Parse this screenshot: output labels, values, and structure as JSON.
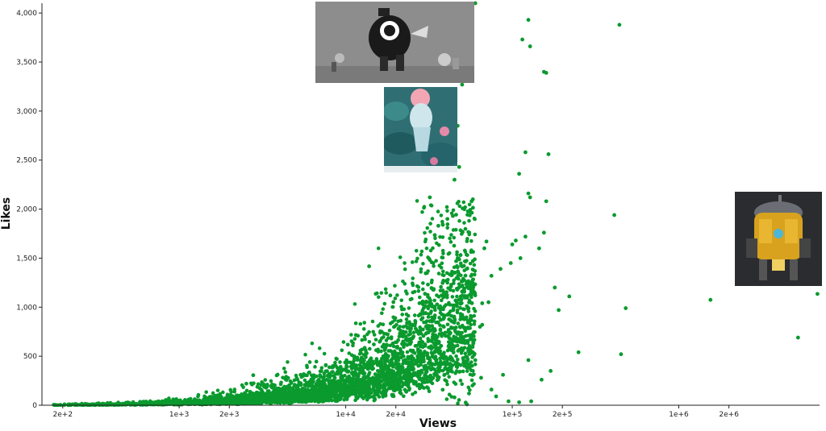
{
  "chart_data": {
    "type": "scatter",
    "title": "",
    "xlabel": "Views",
    "ylabel": "Likes",
    "x_scale": "log",
    "xlim": [
      150,
      7000000
    ],
    "ylim": [
      0,
      4100
    ],
    "x_ticks": [
      {
        "value": 200,
        "label": "2e+2"
      },
      {
        "value": 1000,
        "label": "1e+3"
      },
      {
        "value": 2000,
        "label": "2e+3"
      },
      {
        "value": 10000,
        "label": "1e+4"
      },
      {
        "value": 20000,
        "label": "2e+4"
      },
      {
        "value": 100000,
        "label": "1e+5"
      },
      {
        "value": 200000,
        "label": "2e+5"
      },
      {
        "value": 1000000,
        "label": "1e+6"
      },
      {
        "value": 2000000,
        "label": "2e+6"
      }
    ],
    "y_ticks": [
      {
        "value": 0,
        "label": "0"
      },
      {
        "value": 500,
        "label": "500"
      },
      {
        "value": 1000,
        "label": "1,000"
      },
      {
        "value": 1500,
        "label": "1,500"
      },
      {
        "value": 2000,
        "label": "2,000"
      },
      {
        "value": 2500,
        "label": "2,500"
      },
      {
        "value": 3000,
        "label": "3,000"
      },
      {
        "value": 3500,
        "label": "3,500"
      },
      {
        "value": 4000,
        "label": "4,000"
      }
    ],
    "point_color": "#0a9a2e",
    "grid": false,
    "legend": "none",
    "series": [
      {
        "values": [
          [
            60000,
            4100
          ],
          [
            125000,
            3930
          ],
          [
            115000,
            3730
          ],
          [
            128000,
            3660
          ],
          [
            440000,
            3880
          ],
          [
            155000,
            3400
          ],
          [
            160000,
            3390
          ],
          [
            50000,
            3270
          ],
          [
            47000,
            2850
          ],
          [
            45000,
            2820
          ],
          [
            120000,
            2580
          ],
          [
            165000,
            2560
          ],
          [
            48000,
            2430
          ],
          [
            110000,
            2360
          ],
          [
            45000,
            2300
          ],
          [
            125000,
            2160
          ],
          [
            128000,
            2120
          ],
          [
            160000,
            2080
          ],
          [
            32000,
            2120
          ],
          [
            32500,
            2040
          ],
          [
            58000,
            2100
          ],
          [
            57000,
            2080
          ],
          [
            44000,
            1930
          ],
          [
            410000,
            1940
          ],
          [
            155000,
            1760
          ],
          [
            36000,
            1830
          ],
          [
            120000,
            1720
          ],
          [
            105000,
            1680
          ],
          [
            70000,
            1670
          ],
          [
            100000,
            1640
          ],
          [
            145000,
            1600
          ],
          [
            68000,
            1600
          ],
          [
            112000,
            1500
          ],
          [
            98000,
            1450
          ],
          [
            85000,
            1390
          ],
          [
            75000,
            1320
          ],
          [
            180000,
            1200
          ],
          [
            220000,
            1110
          ],
          [
            480000,
            990
          ],
          [
            190000,
            970
          ],
          [
            1550000,
            1075
          ],
          [
            6800000,
            1135
          ],
          [
            72000,
            1050
          ],
          [
            66000,
            1040
          ],
          [
            5200000,
            690
          ],
          [
            450000,
            520
          ],
          [
            250000,
            540
          ],
          [
            125000,
            460
          ],
          [
            170000,
            350
          ],
          [
            150000,
            260
          ],
          [
            88000,
            310
          ],
          [
            65000,
            280
          ],
          [
            75000,
            160
          ],
          [
            80000,
            90
          ],
          [
            55000,
            120
          ],
          [
            45000,
            80
          ],
          [
            95000,
            40
          ],
          [
            110000,
            30
          ],
          [
            130000,
            40
          ],
          [
            60000,
            460
          ],
          [
            50000,
            640
          ],
          [
            64000,
            800
          ],
          [
            66000,
            820
          ]
        ]
      }
    ]
  }
}
